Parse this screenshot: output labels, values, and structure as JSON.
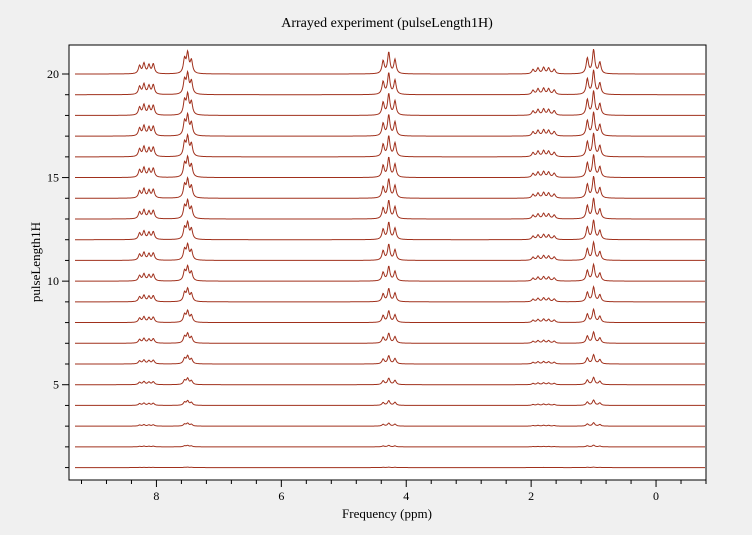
{
  "chart_data": {
    "type": "line",
    "title": "Arrayed experiment (pulseLength1H)",
    "xlabel": "Frequency (ppm)",
    "ylabel": "pulseLength1H",
    "xlim": [
      9.4,
      -0.8
    ],
    "x_reversed": true,
    "x_ticks": [
      8,
      6,
      4,
      2,
      0
    ],
    "x_minor_step": 0.4,
    "ylim": [
      0.4,
      21.4
    ],
    "y_ticks": [
      5,
      10,
      15,
      20
    ],
    "grid": false,
    "line_color": "#a0301c",
    "trace_offsets": [
      1,
      2,
      3,
      4,
      5,
      6,
      7,
      8,
      9,
      10,
      11,
      12,
      13,
      14,
      15,
      16,
      17,
      18,
      19,
      20
    ],
    "trace_amplitude_scale": [
      0.02,
      0.07,
      0.14,
      0.22,
      0.3,
      0.38,
      0.46,
      0.54,
      0.61,
      0.68,
      0.74,
      0.8,
      0.85,
      0.89,
      0.93,
      0.96,
      0.98,
      1.0,
      1.0,
      1.0
    ],
    "peaks": [
      {
        "ppm": 8.27,
        "height": 0.28
      },
      {
        "ppm": 8.2,
        "height": 0.36
      },
      {
        "ppm": 8.12,
        "height": 0.3
      },
      {
        "ppm": 8.05,
        "height": 0.34
      },
      {
        "ppm": 7.55,
        "height": 0.5
      },
      {
        "ppm": 7.5,
        "height": 0.7
      },
      {
        "ppm": 7.44,
        "height": 0.45
      },
      {
        "ppm": 4.37,
        "height": 0.45
      },
      {
        "ppm": 4.28,
        "height": 0.75
      },
      {
        "ppm": 4.18,
        "height": 0.5
      },
      {
        "ppm": 1.97,
        "height": 0.15
      },
      {
        "ppm": 1.89,
        "height": 0.2
      },
      {
        "ppm": 1.8,
        "height": 0.22
      },
      {
        "ppm": 1.72,
        "height": 0.2
      },
      {
        "ppm": 1.63,
        "height": 0.16
      },
      {
        "ppm": 1.1,
        "height": 0.55
      },
      {
        "ppm": 1.0,
        "height": 0.85
      },
      {
        "ppm": 0.9,
        "height": 0.4
      }
    ],
    "peak_width_ppm": 0.022
  }
}
